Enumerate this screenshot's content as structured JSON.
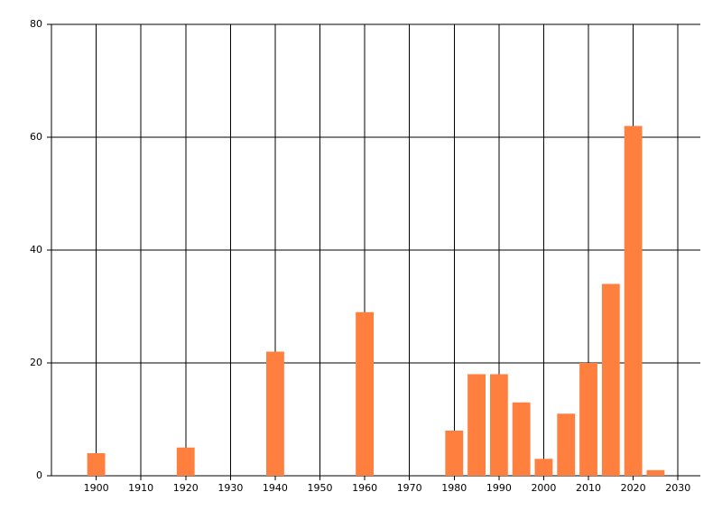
{
  "chart_data": {
    "type": "bar",
    "x": [
      1900,
      1920,
      1940,
      1960,
      1980,
      1985,
      1990,
      1995,
      2000,
      2005,
      2010,
      2015,
      2020,
      2025
    ],
    "values": [
      4,
      5,
      22,
      29,
      8,
      18,
      18,
      13,
      3,
      11,
      20,
      34,
      62,
      1
    ],
    "color": "#ff7f3f",
    "bar_width": 4,
    "xlim": [
      1890,
      2035
    ],
    "xticks": [
      1900,
      1910,
      1920,
      1930,
      1940,
      1950,
      1960,
      1970,
      1980,
      1990,
      2000,
      2010,
      2020,
      2030
    ],
    "ylim": [
      0,
      80
    ],
    "yticks": [
      0,
      20,
      40,
      60,
      80
    ],
    "grid": true
  }
}
